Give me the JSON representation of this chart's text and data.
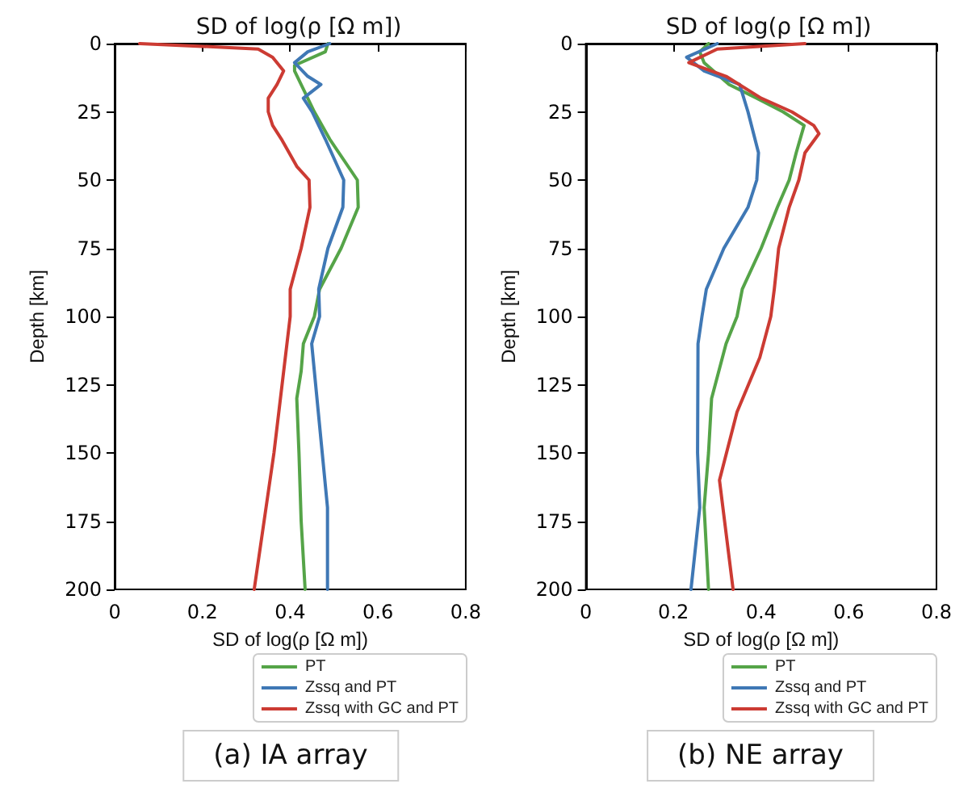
{
  "chart_data": [
    {
      "type": "line",
      "title": "SD of log(ρ [Ω m])",
      "xlabel": "SD of log(ρ [Ω m])",
      "ylabel": "Depth [km]",
      "annotations": [
        "(a) IA array"
      ],
      "xlim": [
        0,
        0.8
      ],
      "xticks": [
        0,
        0.2,
        0.4,
        0.6,
        0.8
      ],
      "ylim": [
        200,
        0
      ],
      "yticks": [
        0,
        25,
        50,
        75,
        100,
        125,
        150,
        175,
        200
      ],
      "grid": false,
      "legend": "bottom right",
      "marker": "none",
      "line_style": "solid",
      "series": [
        {
          "name": "PT",
          "color": "#55a448",
          "x": [
            0.486,
            0.48,
            0.41,
            0.41,
            0.455,
            0.49,
            0.553,
            0.555,
            0.516,
            0.467,
            0.455,
            0.43,
            0.425,
            0.415,
            0.42,
            0.425,
            0.434
          ],
          "values": [
            0,
            3,
            8,
            10,
            25,
            35,
            50,
            60,
            75,
            90,
            100,
            110,
            120,
            130,
            150,
            175,
            200
          ]
        },
        {
          "name": "Zssq and PT",
          "color": "#3f78b5",
          "x": [
            0.49,
            0.44,
            0.41,
            0.44,
            0.47,
            0.43,
            0.45,
            0.48,
            0.522,
            0.52,
            0.486,
            0.465,
            0.467,
            0.449,
            0.473,
            0.485,
            0.485
          ],
          "values": [
            0,
            3,
            7,
            12,
            15,
            20,
            25,
            35,
            50,
            60,
            75,
            90,
            100,
            110,
            150,
            170,
            200
          ]
        },
        {
          "name": "Zssq with GC and PT",
          "color": "#cc3b33",
          "x": [
            0.057,
            0.2,
            0.327,
            0.36,
            0.385,
            0.37,
            0.35,
            0.35,
            0.36,
            0.38,
            0.415,
            0.443,
            0.445,
            0.425,
            0.4,
            0.4,
            0.363,
            0.318
          ],
          "values": [
            0,
            1,
            2,
            5,
            10,
            15,
            20,
            25,
            30,
            35,
            45,
            50,
            60,
            75,
            90,
            100,
            150,
            200
          ]
        }
      ]
    },
    {
      "type": "line",
      "title": "SD of log(ρ [Ω m])",
      "xlabel": "SD of log(ρ [Ω m])",
      "ylabel": "Depth [km]",
      "annotations": [
        "(b) NE array"
      ],
      "xlim": [
        0,
        0.8
      ],
      "xticks": [
        0,
        0.2,
        0.4,
        0.6,
        0.8
      ],
      "ylim": [
        200,
        0
      ],
      "yticks": [
        0,
        25,
        50,
        75,
        100,
        125,
        150,
        175,
        200
      ],
      "grid": false,
      "legend": "bottom right",
      "marker": "none",
      "line_style": "solid",
      "series": [
        {
          "name": "PT",
          "color": "#55a448",
          "x": [
            0.28,
            0.26,
            0.27,
            0.327,
            0.39,
            0.45,
            0.498,
            0.48,
            0.464,
            0.437,
            0.4,
            0.357,
            0.345,
            0.32,
            0.287,
            0.28,
            0.27,
            0.28
          ],
          "values": [
            0,
            3,
            7,
            15,
            20,
            25,
            30,
            40,
            50,
            60,
            75,
            90,
            100,
            110,
            130,
            150,
            170,
            200
          ]
        },
        {
          "name": "Zssq and PT",
          "color": "#3f78b5",
          "x": [
            0.3,
            0.23,
            0.27,
            0.351,
            0.37,
            0.394,
            0.39,
            0.37,
            0.315,
            0.275,
            0.265,
            0.256,
            0.255,
            0.26,
            0.24
          ],
          "values": [
            0,
            5,
            10,
            15,
            25,
            40,
            50,
            60,
            75,
            90,
            100,
            110,
            150,
            170,
            200
          ]
        },
        {
          "name": "Zssq with GC and PT",
          "color": "#cc3b33",
          "x": [
            0.5,
            0.3,
            0.235,
            0.32,
            0.4,
            0.47,
            0.52,
            0.532,
            0.5,
            0.486,
            0.464,
            0.44,
            0.43,
            0.422,
            0.397,
            0.345,
            0.305,
            0.336
          ],
          "values": [
            0,
            2,
            7,
            12,
            20,
            25,
            30,
            33,
            40,
            50,
            60,
            75,
            90,
            100,
            115,
            135,
            160,
            200
          ]
        }
      ]
    }
  ]
}
